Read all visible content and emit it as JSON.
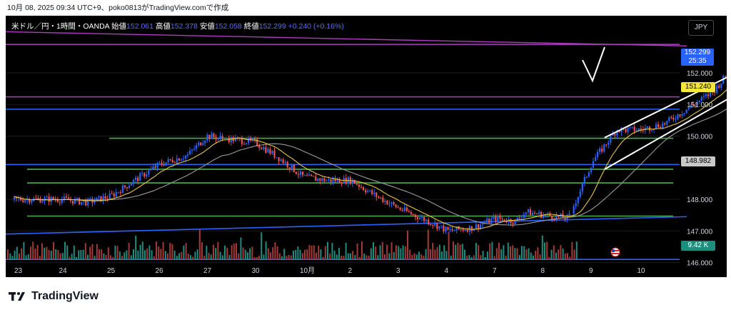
{
  "caption": "10月 08, 2025 09:34 UTC+9、poko0813がTradingView.comで作成",
  "legend": {
    "symbol": "米ドル／円・1時間・OANDA",
    "open_label": "始値",
    "open": "152.061",
    "high_label": "高値",
    "high": "152.378",
    "low_label": "安値",
    "low": "152.058",
    "close_label": "終値",
    "close": "152.299",
    "change": "+0.240 (+0.16%)"
  },
  "currency_button": "JPY",
  "price_tag": {
    "price": "152.299",
    "countdown": "25:35"
  },
  "level_tags": {
    "yellow": "151.240",
    "gray": "148.982",
    "volume": "9.42 K"
  },
  "brand": "TradingView",
  "colors": {
    "background": "#000000",
    "bull": "#2962ff",
    "bear": "#ef5350",
    "vol_bull": "#1f8d7e",
    "vol_bear": "#a33a3a",
    "ma_fast": "#e8c547",
    "ma_slow": "#9a9a9a",
    "hline_green": "#4caf50",
    "hline_blue": "#2962ff",
    "hline_magenta": "#b03cc2",
    "trendline": "#ffffff"
  },
  "chart_data": {
    "type": "candlestick",
    "symbol": "USD/JPY",
    "timeframe": "1h",
    "ylim": [
      145.9,
      153.4
    ],
    "y_ticks": [
      "152.000",
      "151.000",
      "150.000",
      "148.000",
      "147.000",
      "146.000"
    ],
    "x_ticks": [
      "23",
      "24",
      "25",
      "26",
      "27",
      "30",
      "10月",
      "2",
      "3",
      "4",
      "7",
      "8",
      "9",
      "10"
    ],
    "price_path": [
      [
        0,
        148.0
      ],
      [
        1,
        148.0
      ],
      [
        1.5,
        147.9
      ],
      [
        2,
        148.1
      ],
      [
        2.5,
        148.6
      ],
      [
        3,
        149.1
      ],
      [
        3.6,
        149.4
      ],
      [
        4,
        150.0
      ],
      [
        4.5,
        149.9
      ],
      [
        5,
        149.8
      ],
      [
        5.5,
        149.3
      ],
      [
        6,
        148.7
      ],
      [
        6.5,
        148.6
      ],
      [
        7,
        148.6
      ],
      [
        7.4,
        148.2
      ],
      [
        8,
        147.7
      ],
      [
        8.6,
        147.3
      ],
      [
        9,
        147.0
      ],
      [
        9.5,
        147.1
      ],
      [
        10,
        147.4
      ],
      [
        10.4,
        147.3
      ],
      [
        10.6,
        147.6
      ],
      [
        11,
        147.5
      ],
      [
        11.5,
        147.4
      ],
      [
        12,
        149.2
      ],
      [
        12.5,
        150.2
      ],
      [
        13,
        150.2
      ],
      [
        13.5,
        150.4
      ],
      [
        14,
        150.9
      ],
      [
        14.5,
        151.4
      ],
      [
        14.9,
        152.15
      ]
    ],
    "horizontal_levels": [
      {
        "price": 152.9,
        "color": "magenta"
      },
      {
        "price": 151.24,
        "color": "magenta"
      },
      {
        "price": 150.85,
        "color": "blue"
      },
      {
        "price": 149.93,
        "color": "green"
      },
      {
        "price": 149.1,
        "color": "blue"
      },
      {
        "price": 148.95,
        "color": "green"
      },
      {
        "price": 148.52,
        "color": "green"
      },
      {
        "price": 147.47,
        "color": "green"
      },
      {
        "price": 146.1,
        "color": "blue"
      }
    ]
  }
}
